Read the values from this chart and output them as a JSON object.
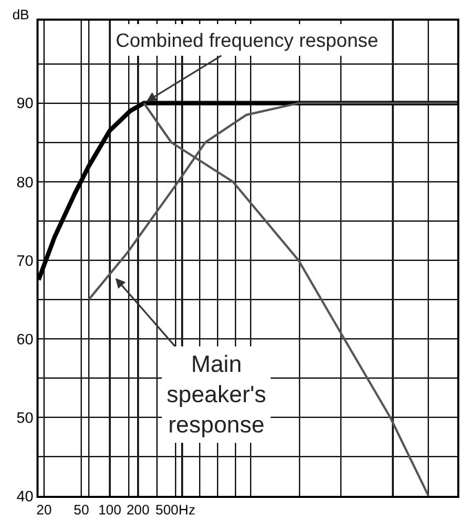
{
  "chart_data": {
    "type": "line",
    "ylabel": "dB",
    "log": "x",
    "grid": true,
    "marker": "none",
    "line_style": "solid",
    "xlim": [
      17.5,
      498000
    ],
    "ylim": [
      40,
      100.5
    ],
    "xticks": [
      20,
      50,
      100,
      200,
      {
        "value": 500,
        "label": "500Hz"
      },
      {
        "value": 60,
        "label": null
      },
      {
        "value": 160,
        "label": null
      },
      {
        "value": 320,
        "label": null
      },
      {
        "value": 590,
        "label": null
      },
      {
        "value": 910,
        "label": null
      },
      {
        "value": 1410,
        "label": null
      },
      {
        "value": 2180,
        "label": null
      },
      {
        "value": 3160,
        "label": null
      },
      {
        "value": 10500,
        "label": null
      },
      {
        "value": 28800,
        "label": null
      },
      {
        "value": 103000,
        "label": null
      },
      {
        "value": 246000,
        "label": null
      }
    ],
    "yticks": [
      40,
      50,
      60,
      70,
      80,
      90,
      {
        "value": 45,
        "label": null
      },
      {
        "value": 55,
        "label": null
      },
      {
        "value": 65,
        "label": null
      },
      {
        "value": 75,
        "label": null
      },
      {
        "value": 85,
        "label": null
      },
      {
        "value": 95,
        "label": null
      }
    ],
    "series": [
      {
        "color": "#000000",
        "x": [
          17.5,
          26,
          43,
          60,
          100,
          165,
          231,
          498000
        ],
        "values": [
          67.5,
          73,
          78.6,
          82,
          86.5,
          89,
          90,
          90
        ]
      },
      {
        "color": "#555555",
        "x": [
          231,
          452,
          2040,
          10200,
          27900,
          96400,
          246000
        ],
        "values": [
          90,
          85,
          80,
          70,
          61,
          50,
          40
        ]
      },
      {
        "color": "#555555",
        "x": [
          60,
          155,
          535,
          1040,
          2840,
          10200,
          498000
        ],
        "values": [
          65,
          71,
          80,
          85,
          88.5,
          90,
          90
        ]
      }
    ],
    "annotations": [
      {
        "text": "Combined frequency response",
        "x": 231,
        "y": 90
      },
      {
        "text": "Main speaker's response",
        "x": 110,
        "y": 68
      }
    ]
  }
}
